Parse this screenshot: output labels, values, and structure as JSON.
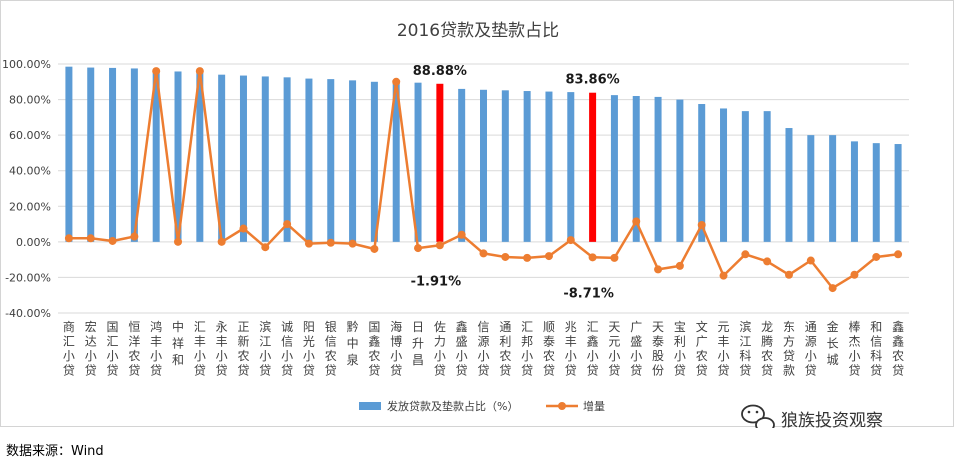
{
  "chart_data": {
    "type": "bar+line",
    "title": "2016贷款及垫款占比",
    "ylim": [
      -40,
      100
    ],
    "yticks": [
      -40,
      -20,
      0,
      20,
      40,
      60,
      80,
      100
    ],
    "ytick_labels": [
      "-40.00%",
      "-20.00%",
      "0.00%",
      "20.00%",
      "40.00%",
      "60.00%",
      "80.00%",
      "100.00%"
    ],
    "categories": [
      "商汇小贷",
      "宏达小贷",
      "国汇小贷",
      "恒洋农贷",
      "鸿丰小贷",
      "中祥和",
      "汇丰小贷",
      "永丰小贷",
      "正新农贷",
      "滨江小贷",
      "诚信小贷",
      "阳光小贷",
      "银信农贷",
      "黔中泉",
      "国鑫农贷",
      "海博小贷",
      "日升昌",
      "佐力小贷",
      "鑫盛小贷",
      "信源小贷",
      "通利农贷",
      "汇邦小贷",
      "顺泰农贷",
      "兆丰小贷",
      "汇鑫小贷",
      "天元小贷",
      "广盛小贷",
      "天泰股份",
      "宝利小贷",
      "文广农贷",
      "元丰小贷",
      "滨江科贷",
      "龙腾农贷",
      "东方贷款",
      "通源小贷",
      "金长城",
      "棒杰小贷",
      "和信科贷",
      "鑫鑫农贷"
    ],
    "series": [
      {
        "name": "发放贷款及垫款占比（%）",
        "kind": "bar",
        "color": "#5b9bd5",
        "highlight_color": "#ff0000",
        "highlight_indices": [
          17,
          24
        ],
        "values": [
          98.5,
          98.0,
          97.8,
          97.5,
          96.5,
          95.8,
          95.5,
          94.0,
          93.5,
          93.0,
          92.5,
          91.8,
          91.5,
          90.8,
          90.0,
          89.8,
          89.5,
          88.88,
          86.0,
          85.5,
          85.2,
          84.8,
          84.5,
          84.2,
          83.86,
          82.5,
          82.0,
          81.5,
          80.0,
          77.5,
          75.0,
          73.5,
          73.5,
          64.0,
          60.0,
          60.0,
          56.5,
          55.5,
          55.0
        ]
      },
      {
        "name": "增量",
        "kind": "line",
        "color": "#ed7d31",
        "values": [
          2.0,
          2.0,
          0.5,
          3.0,
          96.0,
          0.0,
          96.0,
          0.0,
          7.5,
          -3.0,
          10.0,
          -1.0,
          -0.5,
          -1.0,
          -4.0,
          90.0,
          -3.5,
          -1.91,
          4.0,
          -6.5,
          -8.5,
          -9.0,
          -8.0,
          1.0,
          -8.71,
          -9.0,
          11.5,
          -15.5,
          -13.5,
          9.5,
          -19.0,
          -7.0,
          -11.0,
          -18.5,
          -10.5,
          -26.0,
          -18.5,
          -8.5,
          -7.0
        ]
      }
    ],
    "data_labels": [
      {
        "index": 17,
        "series": "bar",
        "text": "88.88%"
      },
      {
        "index": 24,
        "series": "bar",
        "text": "83.86%"
      },
      {
        "index": 17,
        "series": "line",
        "text": "-1.91%"
      },
      {
        "index": 24,
        "series": "line",
        "text": "-8.71%"
      }
    ],
    "legend": {
      "position": "bottom",
      "entries": [
        "发放贷款及垫款占比（%）",
        "增量"
      ]
    }
  },
  "watermark": "狼族投资观察",
  "source": "数据来源：Wind"
}
